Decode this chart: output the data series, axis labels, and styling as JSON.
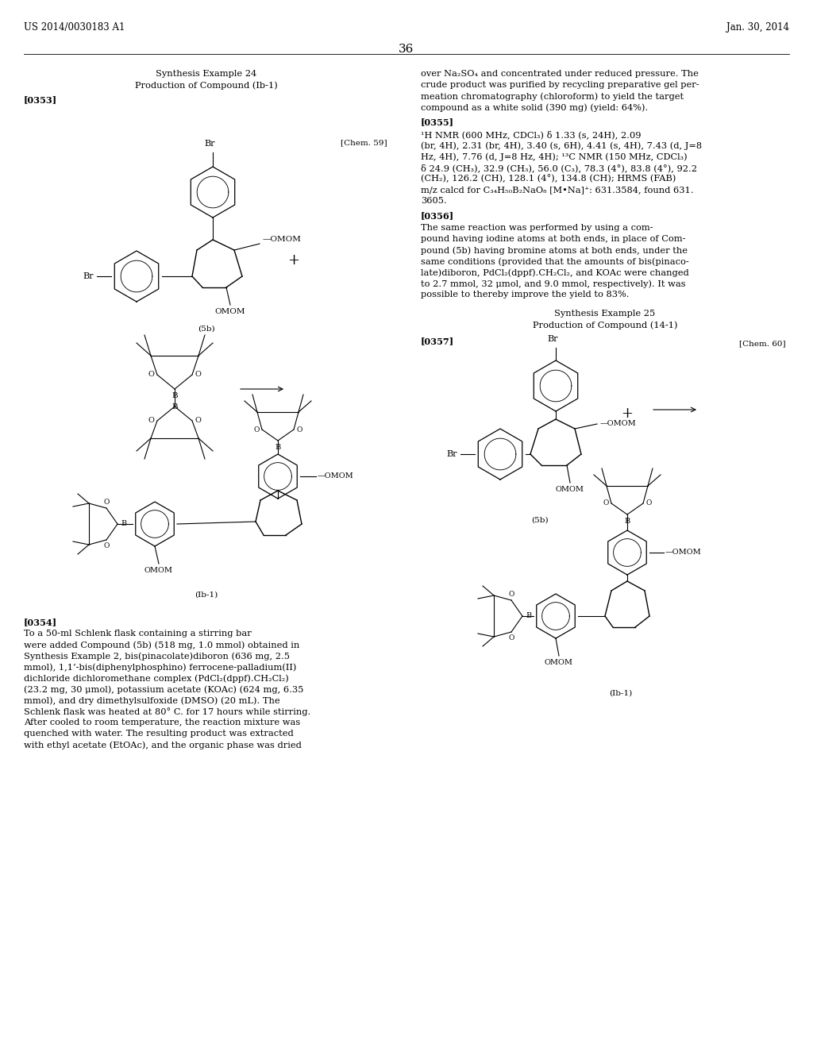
{
  "header_left": "US 2014/0030183 A1",
  "header_right": "Jan. 30, 2014",
  "page_number": "36",
  "synthesis_example_24": "Synthesis Example 24",
  "production_compound_lb1": "Production of Compound (Ib-1)",
  "synthesis_example_25": "Synthesis Example 25",
  "production_compound_14_1": "Production of Compound (14-1)",
  "tag_0353": "[0353]",
  "tag_0354": "[0354]",
  "tag_0355": "[0355]",
  "tag_0356": "[0356]",
  "tag_0357": "[0357]",
  "chem59": "[Chem. 59]",
  "chem60": "[Chem. 60]",
  "right_col_para1": [
    "over Na₂SO₄ and concentrated under reduced pressure. The",
    "crude product was purified by recycling preparative gel per-",
    "meation chromatography (chloroform) to yield the target",
    "compound as a white solid (390 mg) (yield: 64%)."
  ],
  "para_0355": [
    "¹H NMR (600 MHz, CDCl₃) δ 1.33 (s, 24H), 2.09",
    "(br, 4H), 2.31 (br, 4H), 3.40 (s, 6H), 4.41 (s, 4H), 7.43 (d, J=8",
    "Hz, 4H), 7.76 (d, J=8 Hz, 4H); ¹³C NMR (150 MHz, CDCl₃)",
    "δ 24.9 (CH₃), 32.9 (CH₃), 56.0 (C₃), 78.3 (4°), 83.8 (4°), 92.2",
    "(CH₂), 126.2 (CH), 128.1 (4°), 134.8 (CH); HRMS (FAB)",
    "m/z calcd for C₃₄H₅₀B₂NaO₈ [M•Na]⁺: 631.3584, found 631.",
    "3605."
  ],
  "para_0356": [
    "The same reaction was performed by using a com-",
    "pound having iodine atoms at both ends, in place of Com-",
    "pound (5b) having bromine atoms at both ends, under the",
    "same conditions (provided that the amounts of bis(pinaco-",
    "late)diboron, PdCl₂(dppf).CH₂Cl₂, and KOAc were changed",
    "to 2.7 mmol, 32 μmol, and 9.0 mmol, respectively). It was",
    "possible to thereby improve the yield to 83%."
  ],
  "para_0354": [
    "To a 50-ml Schlenk flask containing a stirring bar",
    "were added Compound (5b) (518 mg, 1.0 mmol) obtained in",
    "Synthesis Example 2, bis(pinacolate)diboron (636 mg, 2.5",
    "mmol), 1,1’-bis(diphenylphosphino) ferrocene-palladium(II)",
    "dichloride dichloromethane complex (PdCl₂(dppf).CH₂Cl₂)",
    "(23.2 mg, 30 μmol), potassium acetate (KOAc) (624 mg, 6.35",
    "mmol), and dry dimethylsulfoxide (DMSO) (20 mL). The",
    "Schlenk flask was heated at 80° C. for 17 hours while stirring.",
    "After cooled to room temperature, the reaction mixture was",
    "quenched with water. The resulting product was extracted",
    "with ethyl acetate (EtOAc), and the organic phase was dried"
  ]
}
